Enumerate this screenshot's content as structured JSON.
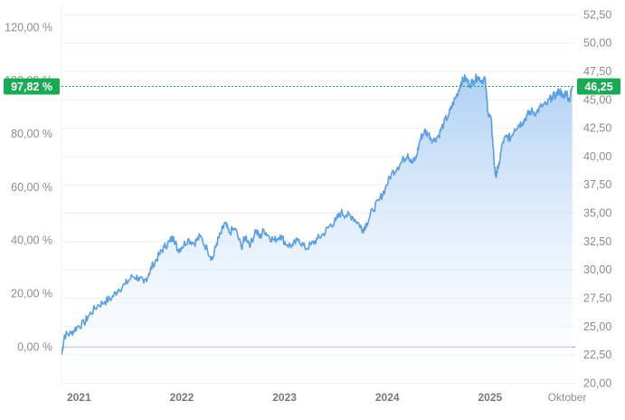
{
  "chart_data": {
    "type": "area",
    "title": "",
    "left_axis": {
      "ticks": [
        "120,00 %",
        "100,00 %",
        "80,00 %",
        "60,00 %",
        "40,00 %",
        "20,00 %",
        "0,00 %"
      ],
      "tick_values": [
        120,
        100,
        80,
        60,
        40,
        20,
        0
      ],
      "ylim": [
        -14.5,
        128.6
      ]
    },
    "right_axis": {
      "ticks": [
        "52,50",
        "50,00",
        "47,50",
        "45,00",
        "42,50",
        "40,00",
        "37,50",
        "35,00",
        "32,50",
        "30,00",
        "27,50",
        "25,00",
        "22,50",
        "20,00"
      ],
      "tick_values": [
        52.5,
        50.0,
        47.5,
        45.0,
        42.5,
        40.0,
        37.5,
        35.0,
        32.5,
        30.0,
        27.5,
        25.0,
        22.5,
        20.0
      ],
      "ylim": [
        19.8,
        53.4
      ]
    },
    "x_axis": {
      "labels": [
        "2021",
        "2022",
        "2023",
        "2024",
        "2025",
        "Oktober"
      ],
      "label_positions": [
        2021.0,
        2022.0,
        2023.0,
        2024.0,
        2025.0,
        2025.75
      ],
      "bold": [
        true,
        true,
        true,
        true,
        true,
        false
      ],
      "xlim": [
        2020.83,
        2025.82
      ]
    },
    "grid": true,
    "baseline_value": 0,
    "current": {
      "percent_label": "97,82 %",
      "price_label": "46,25",
      "percent": 97.82
    },
    "series": [
      {
        "color": "#5a9fe4",
        "points": [
          [
            2020.83,
            -3.0
          ],
          [
            2020.86,
            4.5
          ],
          [
            2020.92,
            5.0
          ],
          [
            2020.98,
            7.5
          ],
          [
            2021.05,
            9.0
          ],
          [
            2021.1,
            12.0
          ],
          [
            2021.18,
            15.5
          ],
          [
            2021.25,
            17.0
          ],
          [
            2021.32,
            18.5
          ],
          [
            2021.38,
            21.5
          ],
          [
            2021.45,
            23.5
          ],
          [
            2021.52,
            26.5
          ],
          [
            2021.58,
            26.0
          ],
          [
            2021.63,
            24.0
          ],
          [
            2021.68,
            27.5
          ],
          [
            2021.72,
            31.0
          ],
          [
            2021.78,
            34.5
          ],
          [
            2021.83,
            37.5
          ],
          [
            2021.88,
            39.5
          ],
          [
            2021.92,
            41.5
          ],
          [
            2021.96,
            36.5
          ],
          [
            2022.0,
            37.5
          ],
          [
            2022.06,
            40.5
          ],
          [
            2022.12,
            39.0
          ],
          [
            2022.18,
            41.5
          ],
          [
            2022.25,
            36.5
          ],
          [
            2022.3,
            33.0
          ],
          [
            2022.34,
            39.0
          ],
          [
            2022.38,
            42.5
          ],
          [
            2022.42,
            46.5
          ],
          [
            2022.46,
            43.0
          ],
          [
            2022.52,
            44.5
          ],
          [
            2022.58,
            37.5
          ],
          [
            2022.62,
            41.5
          ],
          [
            2022.67,
            38.5
          ],
          [
            2022.72,
            44.0
          ],
          [
            2022.76,
            41.0
          ],
          [
            2022.8,
            44.0
          ],
          [
            2022.85,
            41.5
          ],
          [
            2022.9,
            40.0
          ],
          [
            2022.96,
            42.0
          ],
          [
            2023.02,
            38.5
          ],
          [
            2023.08,
            38.0
          ],
          [
            2023.14,
            40.5
          ],
          [
            2023.2,
            37.0
          ],
          [
            2023.26,
            38.5
          ],
          [
            2023.32,
            40.5
          ],
          [
            2023.38,
            42.5
          ],
          [
            2023.44,
            45.5
          ],
          [
            2023.5,
            47.5
          ],
          [
            2023.55,
            50.5
          ],
          [
            2023.6,
            49.5
          ],
          [
            2023.66,
            49.0
          ],
          [
            2023.72,
            46.5
          ],
          [
            2023.76,
            44.0
          ],
          [
            2023.8,
            46.5
          ],
          [
            2023.86,
            51.5
          ],
          [
            2023.92,
            55.0
          ],
          [
            2023.98,
            59.5
          ],
          [
            2024.04,
            65.0
          ],
          [
            2024.1,
            67.5
          ],
          [
            2024.16,
            70.5
          ],
          [
            2024.2,
            72.5
          ],
          [
            2024.24,
            69.0
          ],
          [
            2024.28,
            71.0
          ],
          [
            2024.32,
            78.0
          ],
          [
            2024.36,
            81.0
          ],
          [
            2024.4,
            80.0
          ],
          [
            2024.45,
            77.5
          ],
          [
            2024.5,
            79.5
          ],
          [
            2024.55,
            84.0
          ],
          [
            2024.6,
            87.5
          ],
          [
            2024.64,
            91.5
          ],
          [
            2024.68,
            95.0
          ],
          [
            2024.72,
            99.5
          ],
          [
            2024.76,
            101.0
          ],
          [
            2024.8,
            98.5
          ],
          [
            2024.84,
            100.0
          ],
          [
            2024.88,
            101.5
          ],
          [
            2024.92,
            100.0
          ],
          [
            2024.95,
            101.0
          ],
          [
            2024.98,
            88.0
          ],
          [
            2025.01,
            85.5
          ],
          [
            2025.03,
            75.0
          ],
          [
            2025.05,
            64.5
          ],
          [
            2025.08,
            67.0
          ],
          [
            2025.12,
            76.5
          ],
          [
            2025.16,
            79.0
          ],
          [
            2025.2,
            78.5
          ],
          [
            2025.24,
            82.0
          ],
          [
            2025.28,
            83.5
          ],
          [
            2025.32,
            84.5
          ],
          [
            2025.36,
            87.0
          ],
          [
            2025.4,
            88.5
          ],
          [
            2025.45,
            88.0
          ],
          [
            2025.5,
            90.5
          ],
          [
            2025.55,
            91.0
          ],
          [
            2025.6,
            94.0
          ],
          [
            2025.64,
            94.5
          ],
          [
            2025.68,
            96.5
          ],
          [
            2025.71,
            93.5
          ],
          [
            2025.74,
            96.0
          ],
          [
            2025.77,
            92.5
          ],
          [
            2025.8,
            97.82
          ]
        ]
      }
    ]
  },
  "colors": {
    "line": "#5a9fe4",
    "area_top": "#a9cdf3",
    "area_bottom": "#ffffff",
    "badge": "#1aaa55",
    "grid": "#eeeeee",
    "baseline": "#9a8fb7"
  }
}
